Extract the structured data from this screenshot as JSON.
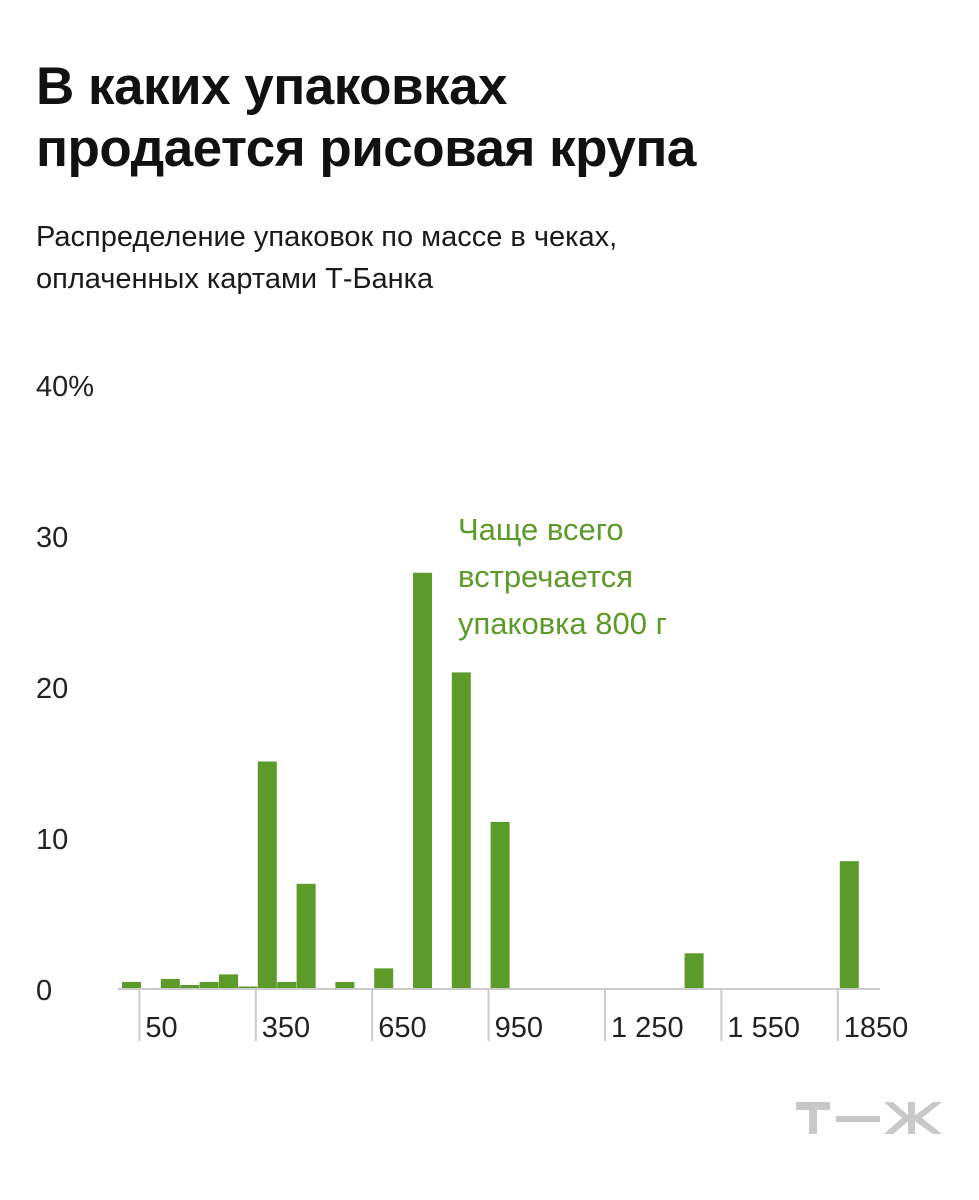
{
  "header": {
    "title_line1": "В каких упаковках",
    "title_line2": "продается рисовая крупа",
    "subtitle_line1": "Распределение упаковок по массе в чеках,",
    "subtitle_line2": "оплаченных картами Т‑Банка"
  },
  "colors": {
    "bar": "#5c9a2a",
    "annotation": "#5c9a2a",
    "axis": "#cccccc",
    "text": "#222222",
    "logo": "#c8c8c8"
  },
  "logo": {
    "name": "t-zh-logo",
    "text": "Т—Ж"
  },
  "chart_data": {
    "type": "bar",
    "title": "В каких упаковках продается рисовая крупа",
    "subtitle": "Распределение упаковок по массе в чеках, оплаченных картами Т‑Банка",
    "ylim": [
      0,
      40
    ],
    "y_ticks": [
      0,
      10,
      20,
      30,
      40
    ],
    "y_tick_labels": [
      "0",
      "10",
      "20",
      "30",
      "40%"
    ],
    "xlim": [
      0,
      2000
    ],
    "x_ticks": [
      50,
      350,
      650,
      950,
      1250,
      1550,
      1850
    ],
    "x_tick_labels": [
      "50",
      "350",
      "650",
      "950",
      "1 250",
      "1 550",
      "1850"
    ],
    "grid": false,
    "bars": [
      {
        "x": 0,
        "value": 0.4
      },
      {
        "x": 100,
        "value": 0.6
      },
      {
        "x": 150,
        "value": 0.2
      },
      {
        "x": 200,
        "value": 0.4
      },
      {
        "x": 250,
        "value": 0.9
      },
      {
        "x": 300,
        "value": 0.1
      },
      {
        "x": 350,
        "value": 15
      },
      {
        "x": 400,
        "value": 0.4
      },
      {
        "x": 450,
        "value": 6.9
      },
      {
        "x": 550,
        "value": 0.4
      },
      {
        "x": 650,
        "value": 1.3
      },
      {
        "x": 750,
        "value": 27.5
      },
      {
        "x": 850,
        "value": 20.9
      },
      {
        "x": 950,
        "value": 11
      },
      {
        "x": 1450,
        "value": 2.3
      },
      {
        "x": 1850,
        "value": 8.4
      }
    ],
    "annotation": {
      "lines": [
        "Чаще всего",
        "встречается",
        "упаковка 800 г"
      ]
    }
  }
}
